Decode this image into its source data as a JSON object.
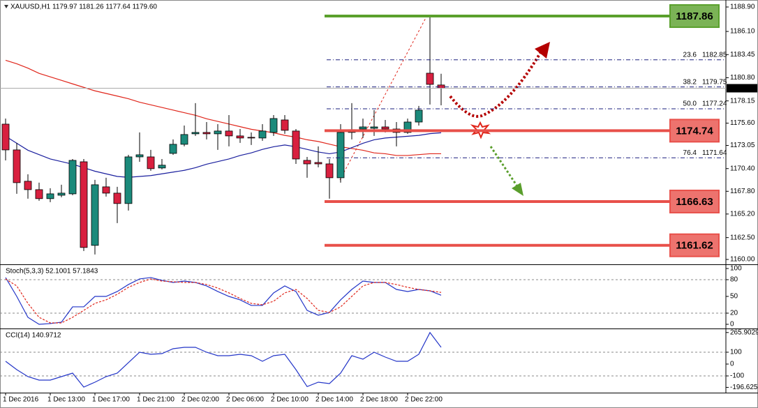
{
  "chart_data": [
    {
      "type": "candlestick",
      "title": "XAUUSD,H1 1179.97 1181.26 1177.64 1179.60",
      "categories": [
        "1 Dec 2016",
        null,
        null,
        null,
        "1 Dec 13:00",
        null,
        null,
        null,
        "1 Dec 17:00",
        null,
        null,
        null,
        "1 Dec 21:00",
        null,
        null,
        null,
        "2 Dec 02:00",
        null,
        null,
        null,
        "2 Dec 06:00",
        null,
        null,
        null,
        "2 Dec 10:00",
        null,
        null,
        null,
        "2 Dec 14:00",
        null,
        null,
        null,
        "2 Dec 18:00",
        null,
        null,
        null,
        "2 Dec 22:00",
        null,
        null,
        null
      ],
      "open": [
        1175.49,
        1172.54,
        1168.95,
        1167.99,
        1166.96,
        1167.35,
        1167.51,
        1171.18,
        1161.61,
        1168.31,
        1167.59,
        1166.4,
        1171.74,
        1171.74,
        1170.47,
        1172.14,
        1173.18,
        1174.38,
        1174.54,
        1174.38,
        1174.7,
        1174.14,
        1173.98,
        1173.9,
        1174.54,
        1175.97,
        1174.7,
        1171.34,
        1171.1,
        1170.94,
        1169.35,
        1174.54,
        1174.93,
        1175.01,
        1175.17,
        1174.93,
        1174.54,
        1175.73,
        1181.32,
        1179.97
      ],
      "high": [
        1176.13,
        1173.34,
        1169.75,
        1168.79,
        1168.15,
        1168.55,
        1171.5,
        1171.5,
        1169.11,
        1169.35,
        1168.31,
        1171.98,
        1174.54,
        1172.54,
        1171.5,
        1173.74,
        1175.33,
        1177.89,
        1175.73,
        1175.49,
        1176.53,
        1174.93,
        1174.54,
        1175.49,
        1176.53,
        1176.53,
        1174.93,
        1171.74,
        1172.94,
        1171.5,
        1175.49,
        1177.89,
        1176.13,
        1177.09,
        1175.97,
        1175.73,
        1176.13,
        1177.57,
        1187.86,
        1181.26
      ],
      "low": [
        1171.34,
        1167.51,
        1166.96,
        1166.72,
        1166.56,
        1167.11,
        1167.35,
        1160.97,
        1160.57,
        1167.19,
        1164.16,
        1165.6,
        1171.18,
        1170.15,
        1170.31,
        1171.98,
        1172.94,
        1174.14,
        1173.74,
        1172.54,
        1172.94,
        1173.34,
        1173.1,
        1173.58,
        1174.14,
        1174.38,
        1170.94,
        1169.35,
        1170.55,
        1166.96,
        1168.79,
        1173.74,
        1173.9,
        1174.14,
        1174.54,
        1172.94,
        1174.38,
        1175.33,
        1177.73,
        1177.64
      ],
      "close": [
        1172.54,
        1168.79,
        1167.99,
        1166.96,
        1167.51,
        1167.59,
        1171.34,
        1161.37,
        1168.55,
        1167.59,
        1166.4,
        1171.74,
        1171.98,
        1170.39,
        1170.79,
        1173.18,
        1174.3,
        1174.54,
        1174.38,
        1174.7,
        1174.14,
        1173.9,
        1173.9,
        1174.7,
        1176.13,
        1174.78,
        1171.5,
        1170.94,
        1170.94,
        1169.35,
        1174.54,
        1174.86,
        1175.17,
        1175.17,
        1174.93,
        1174.54,
        1175.73,
        1177.09,
        1180.04,
        1179.6
      ],
      "up_color": "#1b8a7b",
      "down_color": "#d8203f",
      "series": [
        {
          "color": "#e0261b",
          "values": [
            1182.8,
            1182.4,
            1181.9,
            1181.3,
            1180.9,
            1180.5,
            1180.1,
            1179.7,
            1179.3,
            1179.0,
            1178.7,
            1178.4,
            1178.0,
            1177.7,
            1177.4,
            1177.1,
            1176.8,
            1176.5,
            1176.1,
            1175.8,
            1175.5,
            1175.2,
            1174.9,
            1174.7,
            1174.5,
            1174.2,
            1174.0,
            1173.7,
            1173.5,
            1173.2,
            1172.9,
            1172.7,
            1172.5,
            1172.2,
            1172.1,
            1171.9,
            1171.9,
            1172.0,
            1172.1,
            1172.1
          ]
        },
        {
          "color": "#1a1f9e",
          "values": [
            1174.1,
            1173.3,
            1172.5,
            1172.0,
            1171.5,
            1171.2,
            1170.9,
            1170.5,
            1170.1,
            1169.8,
            1169.5,
            1169.4,
            1169.5,
            1169.6,
            1169.8,
            1170.0,
            1170.2,
            1170.5,
            1170.9,
            1171.2,
            1171.5,
            1171.9,
            1172.2,
            1172.6,
            1172.9,
            1173.1,
            1172.9,
            1172.6,
            1172.3,
            1172.1,
            1172.3,
            1172.8,
            1173.3,
            1173.7,
            1173.9,
            1174.0,
            1174.1,
            1174.2,
            1174.4,
            1174.5
          ]
        }
      ],
      "levels": [
        {
          "value": 1187.86,
          "color": "#5aa02c"
        },
        {
          "value": 1174.74,
          "color": "#e8504a"
        },
        {
          "value": 1166.63,
          "color": "#e8504a"
        },
        {
          "value": 1161.62,
          "color": "#e8504a"
        }
      ],
      "fib_levels": [
        {
          "ratio": 23.6,
          "price": 1182.85
        },
        {
          "ratio": 38.2,
          "price": 1179.75
        },
        {
          "ratio": {
            "value": 50,
            "label": "50.0"
          },
          "price": 1177.24
        },
        {
          "ratio": 76.4,
          "price": 1171.64
        }
      ],
      "price_marker": {
        "value": 1179.6,
        "label": "1179.60"
      },
      "ylim": [
        1159.52,
        1189.54
      ],
      "yticks": [
        {
          "value": 1160,
          "label": "1160.00"
        },
        {
          "value": 1162.5,
          "label": "1162.50"
        },
        {
          "value": 1165.2,
          "label": "1165.20"
        },
        {
          "value": 1167.8,
          "label": "1167.80"
        },
        {
          "value": 1170.4,
          "label": "1170.40"
        },
        1173.05,
        {
          "value": 1175.6,
          "label": "1175.60"
        },
        1178.15,
        {
          "value": 1180.8,
          "label": "1180.80"
        },
        1183.45,
        {
          "value": 1186.1,
          "label": "1186.10"
        },
        {
          "value": 1188.9,
          "label": "1188.90"
        }
      ]
    },
    {
      "type": "line",
      "title": "Stoch(5,3,3) 52.1001 57.1843",
      "series": [
        {
          "color": "#2335c8",
          "values": [
            83.8,
            50,
            12.5,
            0,
            1.3,
            3.8,
            31.3,
            31.3,
            50,
            50,
            58.8,
            71.3,
            81.3,
            83.8,
            78.8,
            75,
            77.5,
            75,
            68.8,
            58.8,
            50,
            43.8,
            33.8,
            33.8,
            56.3,
            68.8,
            58.8,
            25,
            16.3,
            21.3,
            43.8,
            62.5,
            77.5,
            75,
            75,
            62.5,
            58.8,
            62.5,
            60,
            52.1
          ]
        },
        {
          "color": "#e0261b",
          "dashed": true,
          "values": [
            81.3,
            68.8,
            37.5,
            12.5,
            2.5,
            2.5,
            12.5,
            25,
            37.5,
            43.8,
            53.8,
            66.3,
            75,
            81.3,
            77.5,
            76.3,
            75,
            75,
            71.3,
            65,
            56.3,
            46.3,
            37.5,
            35,
            41.3,
            56.3,
            62.5,
            46.3,
            25,
            21.3,
            31.3,
            50,
            68.8,
            75,
            75,
            71.3,
            66.3,
            62.5,
            60,
            57.2
          ]
        }
      ],
      "levels": [
        20,
        80
      ],
      "ylim": [
        -6.25,
        105
      ],
      "yticks": [
        0,
        20,
        50,
        80,
        100
      ]
    },
    {
      "type": "line",
      "title": "CCI(14) 140.9712",
      "series": [
        {
          "color": "#2335c8",
          "values": [
            23.5,
            -47.1,
            -105.9,
            -135.3,
            -135.3,
            -105.9,
            -76.5,
            -194.1,
            -152.9,
            -105.9,
            -76.5,
            11.8,
            100,
            82.4,
            88.2,
            129.4,
            141.2,
            141.2,
            100,
            70.6,
            70.6,
            82.4,
            70.6,
            23.5,
            70.6,
            82.4,
            -47.1,
            -190,
            -152.9,
            -164.7,
            -76.5,
            70.6,
            41.2,
            100,
            58.8,
            23.5,
            23.5,
            82.4,
            265.9,
            140.97
          ]
        }
      ],
      "levels": [
        100,
        -100
      ],
      "ylim": [
        -241.2,
        288.2
      ],
      "yticks": [
        -196.6258,
        -100,
        0,
        100,
        265.9029
      ]
    }
  ]
}
